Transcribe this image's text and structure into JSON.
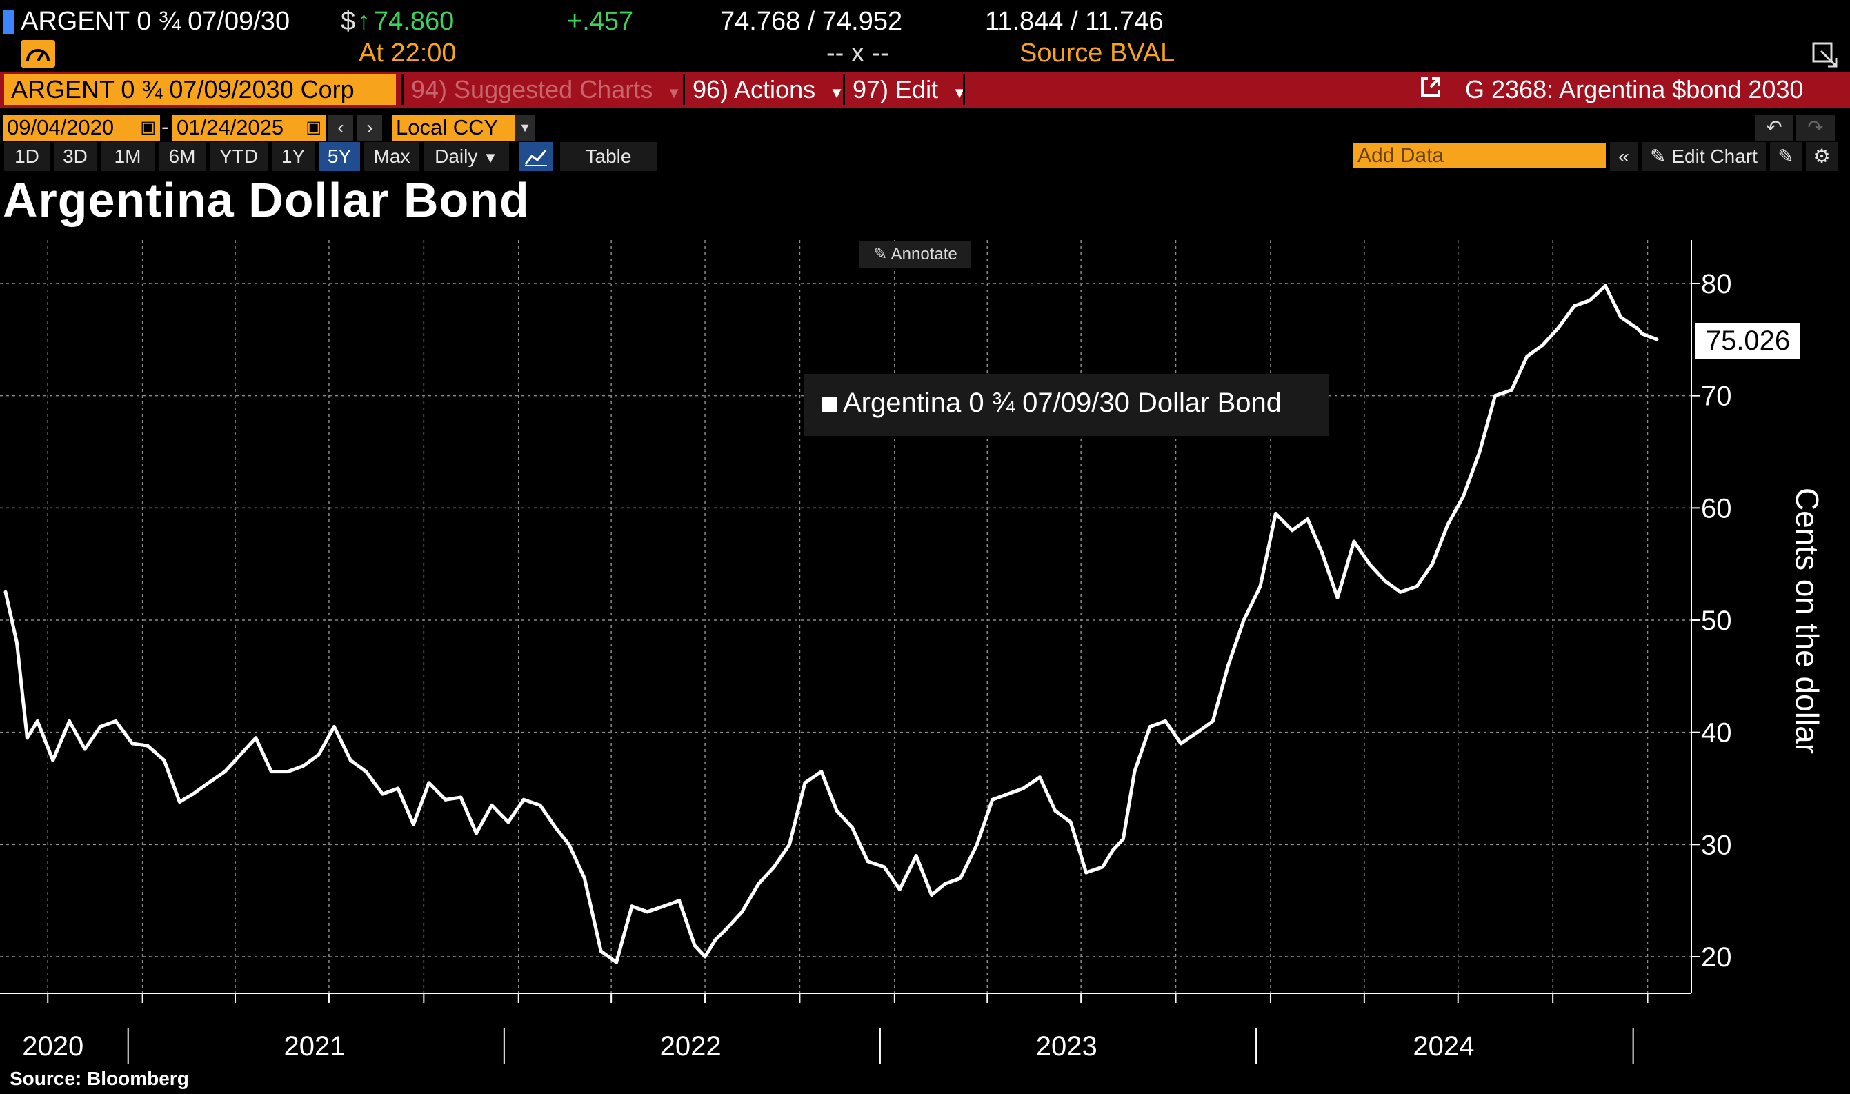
{
  "quote": {
    "ticker": "ARGENT 0 ¾ 07/09/30",
    "currency": "$",
    "arrow": "↑",
    "last_price": "74.860",
    "change": "+.457",
    "bid_ask": "74.768 / 74.952",
    "yields": "11.844 / 11.746",
    "time": "At 22:00",
    "size": "-- x --",
    "source": "Source BVAL"
  },
  "toolbar": {
    "security": "ARGENT 0 ¾ 07/09/2030 Corp",
    "suggested": "94) Suggested Charts",
    "actions": "96) Actions",
    "edit": "97) Edit",
    "chart_ref": "G 2368: Argentina $bond 2030"
  },
  "range": {
    "start_date": "09/04/2020",
    "end_date": "01/24/2025",
    "currency": "Local CCY"
  },
  "periods": [
    "1D",
    "3D",
    "1M",
    "6M",
    "YTD",
    "1Y",
    "5Y",
    "Max"
  ],
  "active_period": "5Y",
  "frequency": "Daily",
  "table_label": "Table",
  "add_data_placeholder": "Add Data",
  "edit_chart_label": "Edit Chart",
  "annotate_label": "Annotate",
  "source_note": "Source: Bloomberg",
  "colors": {
    "accent": "#f7a41c",
    "toolbar": "#a0111d",
    "up": "#3dd15a",
    "active": "#1f4d8f"
  },
  "icons": [
    "gauge-icon",
    "expand-icon",
    "calendar-icon",
    "chevron-left-icon",
    "chevron-right-icon",
    "undo-icon",
    "redo-icon",
    "line-chart-icon",
    "double-chevron-left-icon",
    "pencil-icon",
    "chart-edit-icon",
    "gear-icon",
    "external-link-icon"
  ],
  "chart_data": {
    "type": "line",
    "title": "Argentina Dollar Bond",
    "ylabel": "Cents on the dollar",
    "xlabel": "",
    "ylim": [
      18,
      84
    ],
    "yticks": [
      20,
      30,
      40,
      50,
      60,
      70,
      80
    ],
    "xlim": [
      "2020-09-04",
      "2025-01-24"
    ],
    "year_labels": [
      "2020",
      "2021",
      "2022",
      "2023",
      "2024"
    ],
    "legend": "Argentina 0 ¾ 07/09/30 Dollar Bond",
    "legend_position": "top-center",
    "grid": true,
    "last_value_label": "75.026",
    "series": [
      {
        "name": "Argentina 0 ¾ 07/09/30 Dollar Bond",
        "x": [
          "2020-09-04",
          "2020-09-15",
          "2020-09-25",
          "2020-10-05",
          "2020-10-20",
          "2020-11-05",
          "2020-11-20",
          "2020-12-05",
          "2020-12-20",
          "2021-01-05",
          "2021-01-20",
          "2021-02-05",
          "2021-02-20",
          "2021-03-05",
          "2021-03-20",
          "2021-04-05",
          "2021-04-20",
          "2021-05-05",
          "2021-05-20",
          "2021-06-05",
          "2021-06-20",
          "2021-07-05",
          "2021-07-20",
          "2021-08-05",
          "2021-08-20",
          "2021-09-05",
          "2021-09-20",
          "2021-10-05",
          "2021-10-20",
          "2021-11-05",
          "2021-11-20",
          "2021-12-05",
          "2021-12-20",
          "2022-01-05",
          "2022-01-20",
          "2022-02-05",
          "2022-02-20",
          "2022-03-05",
          "2022-03-20",
          "2022-04-05",
          "2022-04-20",
          "2022-05-05",
          "2022-05-20",
          "2022-06-05",
          "2022-06-20",
          "2022-07-05",
          "2022-07-15",
          "2022-07-25",
          "2022-08-05",
          "2022-08-20",
          "2022-09-05",
          "2022-09-20",
          "2022-10-05",
          "2022-10-20",
          "2022-11-05",
          "2022-11-20",
          "2022-12-05",
          "2022-12-20",
          "2023-01-05",
          "2023-01-20",
          "2023-02-05",
          "2023-02-20",
          "2023-03-05",
          "2023-03-20",
          "2023-04-05",
          "2023-04-20",
          "2023-05-05",
          "2023-05-20",
          "2023-06-05",
          "2023-06-20",
          "2023-07-05",
          "2023-07-20",
          "2023-08-05",
          "2023-08-15",
          "2023-08-25",
          "2023-09-05",
          "2023-09-20",
          "2023-10-05",
          "2023-10-20",
          "2023-11-05",
          "2023-11-20",
          "2023-12-05",
          "2023-12-20",
          "2024-01-05",
          "2024-01-20",
          "2024-02-05",
          "2024-02-20",
          "2024-03-05",
          "2024-03-20",
          "2024-04-05",
          "2024-04-20",
          "2024-05-05",
          "2024-05-20",
          "2024-06-05",
          "2024-06-20",
          "2024-07-05",
          "2024-07-20",
          "2024-08-05",
          "2024-08-20",
          "2024-09-05",
          "2024-09-20",
          "2024-10-05",
          "2024-10-20",
          "2024-11-05",
          "2024-11-20",
          "2024-12-05",
          "2024-12-20",
          "2025-01-05",
          "2025-01-10",
          "2025-01-24"
        ],
        "values": [
          52.5,
          48.0,
          39.5,
          41.0,
          37.5,
          41.0,
          38.5,
          40.5,
          41.0,
          39.0,
          38.8,
          37.5,
          33.8,
          34.5,
          35.5,
          36.5,
          38.0,
          39.5,
          36.5,
          36.5,
          37.0,
          38.0,
          40.5,
          37.5,
          36.5,
          34.5,
          35.0,
          31.8,
          35.5,
          34.0,
          34.2,
          31.0,
          33.5,
          32.0,
          34.0,
          33.5,
          31.5,
          30.0,
          27.0,
          20.5,
          19.5,
          24.5,
          24.0,
          24.5,
          25.0,
          21.0,
          20.0,
          21.5,
          22.5,
          24.0,
          26.5,
          28.0,
          30.0,
          35.5,
          36.5,
          33.0,
          31.5,
          28.5,
          28.0,
          26.0,
          29.0,
          25.5,
          26.5,
          27.0,
          30.0,
          34.0,
          34.5,
          35.0,
          36.0,
          33.0,
          32.0,
          27.5,
          28.0,
          29.5,
          30.5,
          36.5,
          40.5,
          41.0,
          39.0,
          40.0,
          41.0,
          46.0,
          50.0,
          53.0,
          59.5,
          58.0,
          59.0,
          56.0,
          52.0,
          57.0,
          55.0,
          53.5,
          52.5,
          53.0,
          55.0,
          58.5,
          61.0,
          65.0,
          70.0,
          70.5,
          73.5,
          74.5,
          76.0,
          78.0,
          78.5,
          79.8,
          77.0,
          76.0,
          75.5,
          75.026
        ]
      }
    ]
  }
}
